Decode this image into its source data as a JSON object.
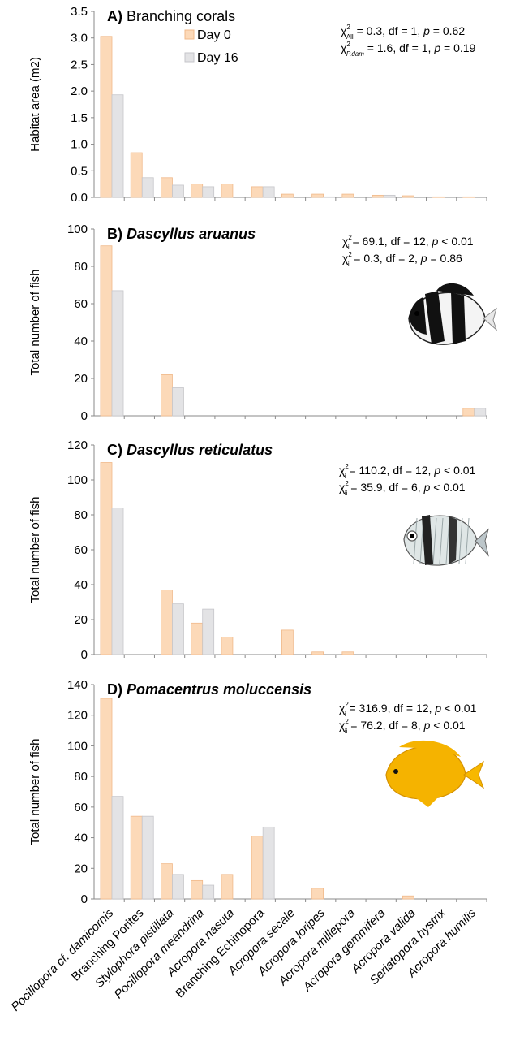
{
  "colors": {
    "day0_fill": "#fcd9b8",
    "day0_stroke": "#f0b98a",
    "day16_fill": "#e3e3e5",
    "day16_stroke": "#c6c6ca",
    "axis": "#8a8a8a"
  },
  "chart_data": [
    {
      "type": "bar",
      "panel": "A)",
      "title": "Branching corals",
      "ylabel": "Habitat area (m2)",
      "ylim": [
        0,
        3.5
      ],
      "yticks": [
        "0.0",
        "0.5",
        "1.0",
        "1.5",
        "2.0",
        "2.5",
        "3.0",
        "3.5"
      ],
      "categories": [
        "Pocillopora cf. damicornis",
        "Branching Porites",
        "Stylophora pistillata",
        "Pocillopora meandrina",
        "Acropora nasuta",
        "Branching Echinopora",
        "Acropora secale",
        "Acropora loripes",
        "Acropora millepora",
        "Acropora gemmifera",
        "Acropora valida",
        "Seriatopora hystrix",
        "Acropora humilis"
      ],
      "series": [
        {
          "name": "Day 0",
          "values": [
            3.03,
            0.84,
            0.37,
            0.25,
            0.25,
            0.2,
            0.06,
            0.06,
            0.06,
            0.04,
            0.03,
            0.01,
            0.01
          ]
        },
        {
          "name": "Day 16",
          "values": [
            1.93,
            0.37,
            0.23,
            0.2,
            0.0,
            0.2,
            0.0,
            0.01,
            0.0,
            0.04,
            0.0,
            0.0,
            0.0
          ]
        }
      ],
      "legend": [
        "Day 0",
        "Day 16"
      ],
      "stats": [
        {
          "chi": "χ",
          "sup": "2",
          "sub": "All",
          "text": " = 0.3, df = 1, ",
          "p": "p",
          "rest": " = 0.62"
        },
        {
          "chi": "χ",
          "sup": "2",
          "sub": "P.dam",
          "text": " = 1.6, df = 1, ",
          "p": "p",
          "rest": " = 0.19"
        }
      ],
      "fish": ""
    },
    {
      "type": "bar",
      "panel": "B)",
      "title": "Dascyllus aruanus",
      "ylabel": "Total number of fish",
      "ylim": [
        0,
        100
      ],
      "yticks": [
        "0",
        "20",
        "40",
        "60",
        "80",
        "100"
      ],
      "categories": [
        "Pocillopora cf. damicornis",
        "Branching Porites",
        "Stylophora pistillata",
        "Pocillopora meandrina",
        "Acropora nasuta",
        "Branching Echinopora",
        "Acropora secale",
        "Acropora loripes",
        "Acropora millepora",
        "Acropora gemmifera",
        "Acropora valida",
        "Seriatopora hystrix",
        "Acropora humilis"
      ],
      "series": [
        {
          "name": "Day 0",
          "values": [
            91,
            0,
            22,
            0,
            0,
            0,
            0,
            0,
            0,
            0,
            0,
            0,
            4
          ]
        },
        {
          "name": "Day 16",
          "values": [
            67,
            0,
            15,
            0,
            0,
            0,
            0,
            0,
            0,
            0,
            0,
            0,
            4
          ]
        }
      ],
      "stats": [
        {
          "chi": "χ",
          "sup": "2",
          "sub": "i",
          "text": " = 69.1, df = 12, ",
          "p": "p",
          "rest": " < 0.01"
        },
        {
          "chi": "χ",
          "sup": "2",
          "sub": "ii",
          "text": " = 0.3, df = 2, ",
          "p": "p",
          "rest": " = 0.86"
        }
      ],
      "fish": "humbug-damselfish-image"
    },
    {
      "type": "bar",
      "panel": "C)",
      "title": "Dascyllus reticulatus",
      "ylabel": "Total number of fish",
      "ylim": [
        0,
        120
      ],
      "yticks": [
        "0",
        "20",
        "40",
        "60",
        "80",
        "100",
        "120"
      ],
      "categories": [
        "Pocillopora cf. damicornis",
        "Branching Porites",
        "Stylophora pistillata",
        "Pocillopora meandrina",
        "Acropora nasuta",
        "Branching Echinopora",
        "Acropora secale",
        "Acropora loripes",
        "Acropora millepora",
        "Acropora gemmifera",
        "Acropora valida",
        "Seriatopora hystrix",
        "Acropora humilis"
      ],
      "series": [
        {
          "name": "Day 0",
          "values": [
            110,
            0,
            37,
            18,
            10,
            0,
            14,
            1.5,
            1.5,
            0,
            0,
            0,
            0
          ]
        },
        {
          "name": "Day 16",
          "values": [
            84,
            0,
            29,
            26,
            0,
            0,
            0,
            0,
            0,
            0,
            0,
            0,
            0
          ]
        }
      ],
      "stats": [
        {
          "chi": "χ",
          "sup": "2",
          "sub": "i",
          "text": " = 110.2, df = 12, ",
          "p": "p",
          "rest": " < 0.01"
        },
        {
          "chi": "χ",
          "sup": "2",
          "sub": "ii",
          "text": " = 35.9, df = 6, ",
          "p": "p",
          "rest": " < 0.01"
        }
      ],
      "fish": "reticulated-damselfish-image"
    },
    {
      "type": "bar",
      "panel": "D)",
      "title": "Pomacentrus moluccensis",
      "ylabel": "Total number of fish",
      "ylim": [
        0,
        140
      ],
      "yticks": [
        "0",
        "20",
        "40",
        "60",
        "80",
        "100",
        "120",
        "140"
      ],
      "categories": [
        "Pocillopora cf. damicornis",
        "Branching Porites",
        "Stylophora pistillata",
        "Pocillopora meandrina",
        "Acropora nasuta",
        "Branching Echinopora",
        "Acropora secale",
        "Acropora loripes",
        "Acropora millepora",
        "Acropora gemmifera",
        "Acropora valida",
        "Seriatopora hystrix",
        "Acropora humilis"
      ],
      "series": [
        {
          "name": "Day 0",
          "values": [
            131,
            54,
            23,
            12,
            16,
            41,
            0,
            7,
            0,
            0,
            2,
            0,
            0
          ]
        },
        {
          "name": "Day 16",
          "values": [
            67,
            54,
            16,
            9,
            0,
            47,
            0,
            0,
            0,
            0,
            0,
            0,
            0
          ]
        }
      ],
      "stats": [
        {
          "chi": "χ",
          "sup": "2",
          "sub": "i",
          "text": " = 316.9, df = 12, ",
          "p": "p",
          "rest": " < 0.01"
        },
        {
          "chi": "χ",
          "sup": "2",
          "sub": "ii",
          "text": " = 76.2, df = 8, ",
          "p": "p",
          "rest": " < 0.01"
        }
      ],
      "fish": "lemon-damselfish-image"
    }
  ],
  "x_tick_labels": [
    {
      "italic": "Pocillopora cf. damicornis",
      "plain": ""
    },
    {
      "italic": "",
      "plain": "Branching Porites"
    },
    {
      "italic": "Stylophora pistillata",
      "plain": ""
    },
    {
      "italic": "Pocillopora meandrina",
      "plain": ""
    },
    {
      "italic": "Acropora nasuta",
      "plain": ""
    },
    {
      "italic": "",
      "plain": "Branching Echinopora"
    },
    {
      "italic": "Acropora secale",
      "plain": ""
    },
    {
      "italic": "Acropora loripes",
      "plain": ""
    },
    {
      "italic": "Acropora millepora",
      "plain": ""
    },
    {
      "italic": "Acropora gemmifera",
      "plain": ""
    },
    {
      "italic": "Acropora valida",
      "plain": ""
    },
    {
      "italic": "Seriatopora hystrix",
      "plain": ""
    },
    {
      "italic": "Acropora humilis",
      "plain": ""
    }
  ]
}
